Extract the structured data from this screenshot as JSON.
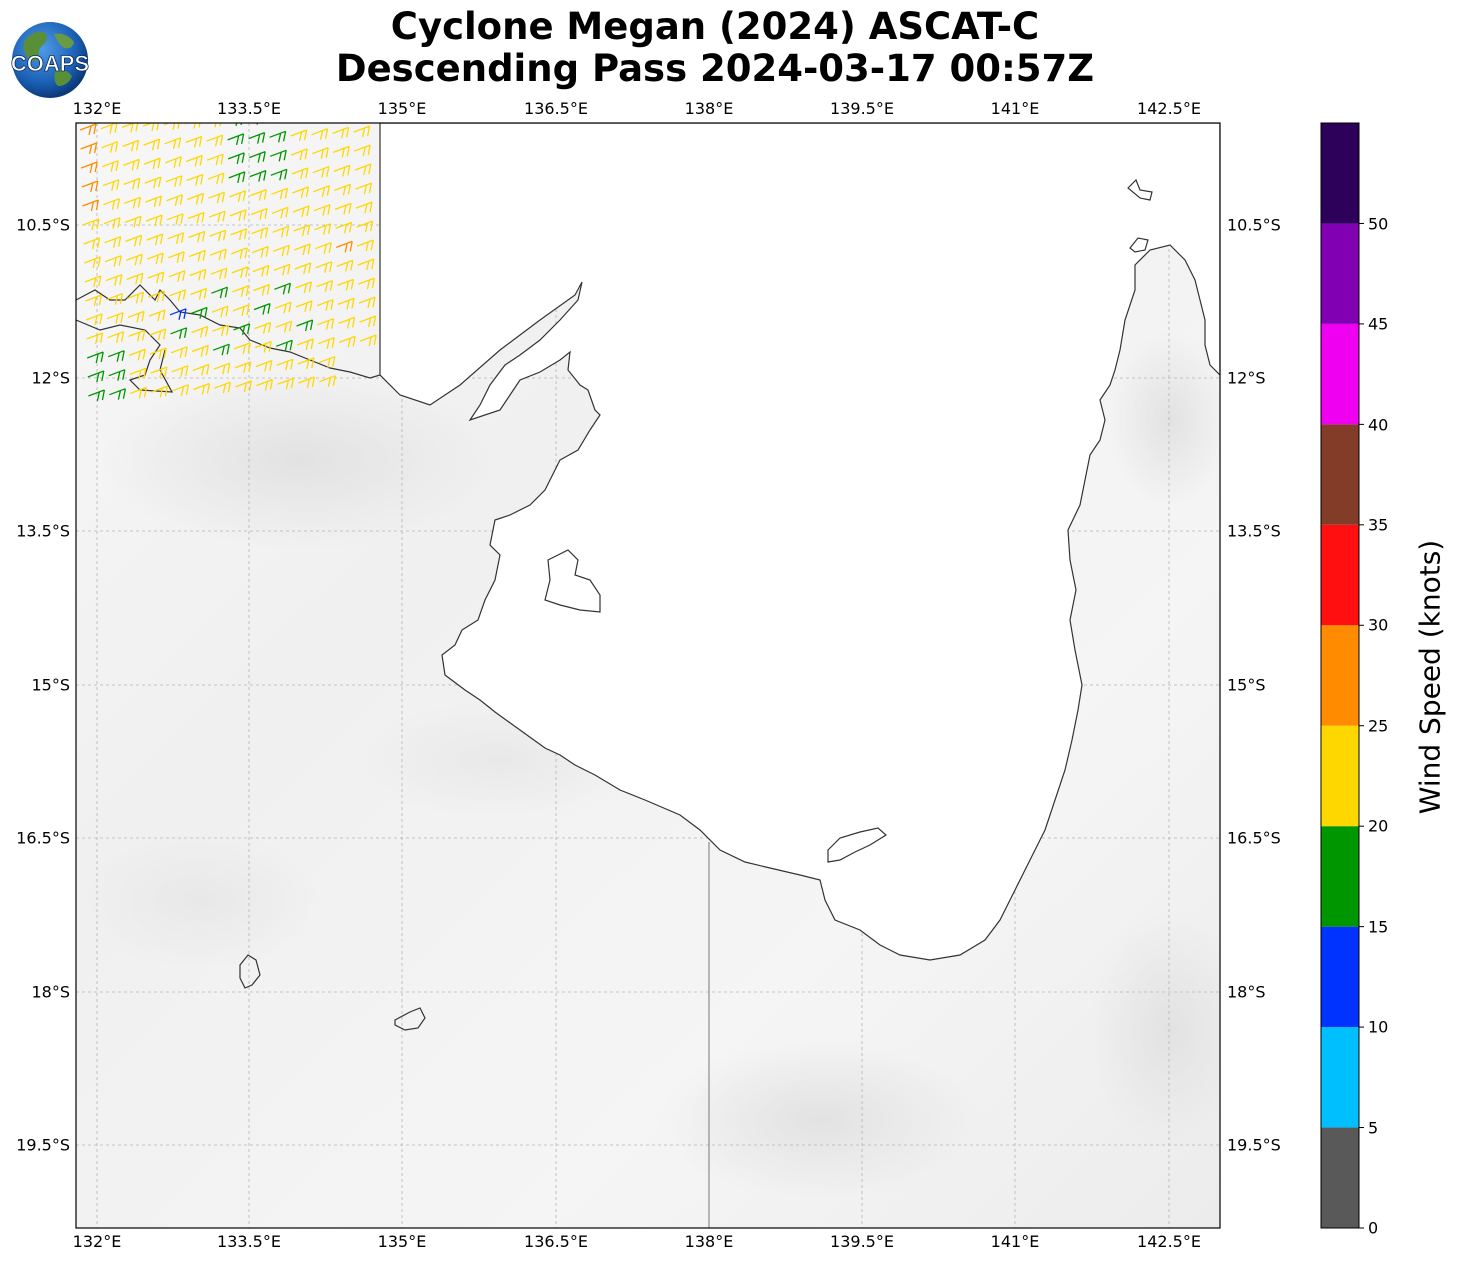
{
  "title": {
    "line1": "Cyclone Megan (2024) ASCAT-C",
    "line2": "Descending Pass 2024-03-17 00:57Z"
  },
  "logo": {
    "text": "COAPS",
    "icon": "globe-logo-icon"
  },
  "map": {
    "lon_ticks": [
      "132°E",
      "133.5°E",
      "135°E",
      "136.5°E",
      "138°E",
      "139.5°E",
      "141°E",
      "142.5°E"
    ],
    "lat_ticks": [
      "10.5°S",
      "12°S",
      "13.5°S",
      "15°S",
      "16.5°S",
      "18°S",
      "19.5°S"
    ],
    "lon_range": [
      131.8,
      143.0
    ],
    "lat_range": [
      -9.5,
      -20.3
    ],
    "grid": true,
    "background": "grayscale infrared satellite imagery",
    "coastline_color": "#333333"
  },
  "colorbar": {
    "label": "Wind Speed (knots)",
    "ticks": [
      "0",
      "5",
      "10",
      "15",
      "20",
      "25",
      "30",
      "35",
      "40",
      "45",
      "50"
    ],
    "bins": [
      {
        "from": 0,
        "to": 5,
        "color": "#595959"
      },
      {
        "from": 5,
        "to": 10,
        "color": "#00bfff"
      },
      {
        "from": 10,
        "to": 15,
        "color": "#0033ff"
      },
      {
        "from": 15,
        "to": 20,
        "color": "#009600"
      },
      {
        "from": 20,
        "to": 25,
        "color": "#ffd700"
      },
      {
        "from": 25,
        "to": 30,
        "color": "#ff8c00"
      },
      {
        "from": 30,
        "to": 35,
        "color": "#ff0f0f"
      },
      {
        "from": 35,
        "to": 40,
        "color": "#823c28"
      },
      {
        "from": 40,
        "to": 45,
        "color": "#f000f0"
      },
      {
        "from": 45,
        "to": 50,
        "color": "#8200b4"
      },
      {
        "from": 50,
        "to": 55,
        "color": "#2d005a"
      }
    ]
  }
}
